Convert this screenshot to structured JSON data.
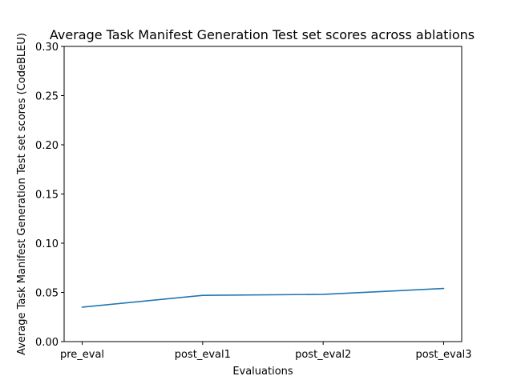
{
  "chart_data": {
    "type": "line",
    "title": "Average Task Manifest Generation Test set scores across ablations",
    "xlabel": "Evaluations",
    "ylabel": "Average Task Manifest Generation Test set scores (CodeBLEU)",
    "categories": [
      "pre_eval",
      "post_eval1",
      "post_eval2",
      "post_eval3"
    ],
    "series": [
      {
        "values": [
          0.035,
          0.047,
          0.048,
          0.054
        ],
        "color": "#1f77b4"
      }
    ],
    "ylim": [
      0.0,
      0.3
    ],
    "yticks": [
      0.0,
      0.05,
      0.1,
      0.15,
      0.2,
      0.25,
      0.3
    ],
    "ytick_labels": [
      "0.00",
      "0.05",
      "0.10",
      "0.15",
      "0.20",
      "0.25",
      "0.30"
    ],
    "grid": false,
    "legend": "none"
  }
}
